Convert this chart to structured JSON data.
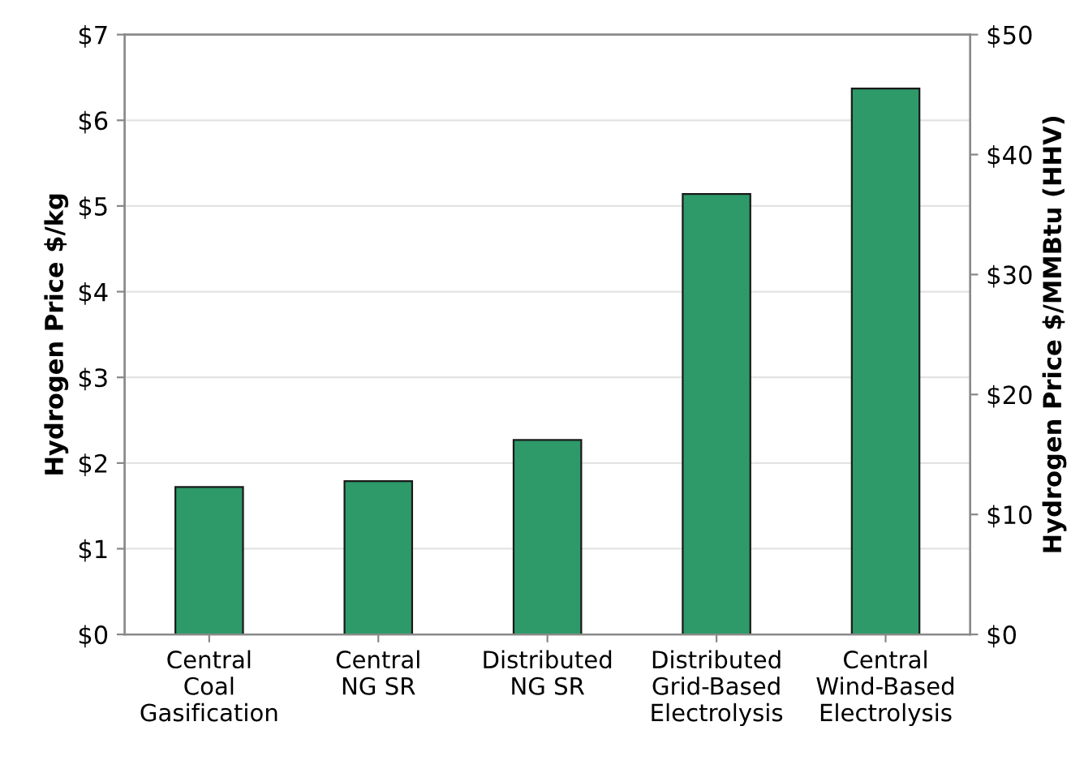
{
  "chart_data": {
    "type": "bar",
    "categories": [
      "Central\nCoal\nGasification",
      "Central\nNG SR",
      "Distributed\nNG SR",
      "Distributed\nGrid-Based\nElectrolysis",
      "Central\nWind-Based\nElectrolysis"
    ],
    "values": [
      1.72,
      1.79,
      2.27,
      5.14,
      6.37
    ],
    "color": "#2e9a69",
    "ylabel": "Hydrogen Price $/kg",
    "y2label": "Hydrogen Price $/MMBtu (HHV)",
    "ylim": [
      0,
      7
    ],
    "yticks": [
      {
        "value": 0,
        "label": "$0"
      },
      {
        "value": 1,
        "label": "$1"
      },
      {
        "value": 2,
        "label": "$2"
      },
      {
        "value": 3,
        "label": "$3"
      },
      {
        "value": 4,
        "label": "$4"
      },
      {
        "value": 5,
        "label": "$5"
      },
      {
        "value": 6,
        "label": "$6"
      },
      {
        "value": 7,
        "label": "$7"
      }
    ],
    "y2lim": [
      0,
      50
    ],
    "y2ticks": [
      {
        "value": 0,
        "label": "$0"
      },
      {
        "value": 10,
        "label": "$10"
      },
      {
        "value": 20,
        "label": "$20"
      },
      {
        "value": 30,
        "label": "$30"
      },
      {
        "value": 40,
        "label": "$40"
      },
      {
        "value": 50,
        "label": "$50"
      }
    ],
    "grid": "y"
  }
}
